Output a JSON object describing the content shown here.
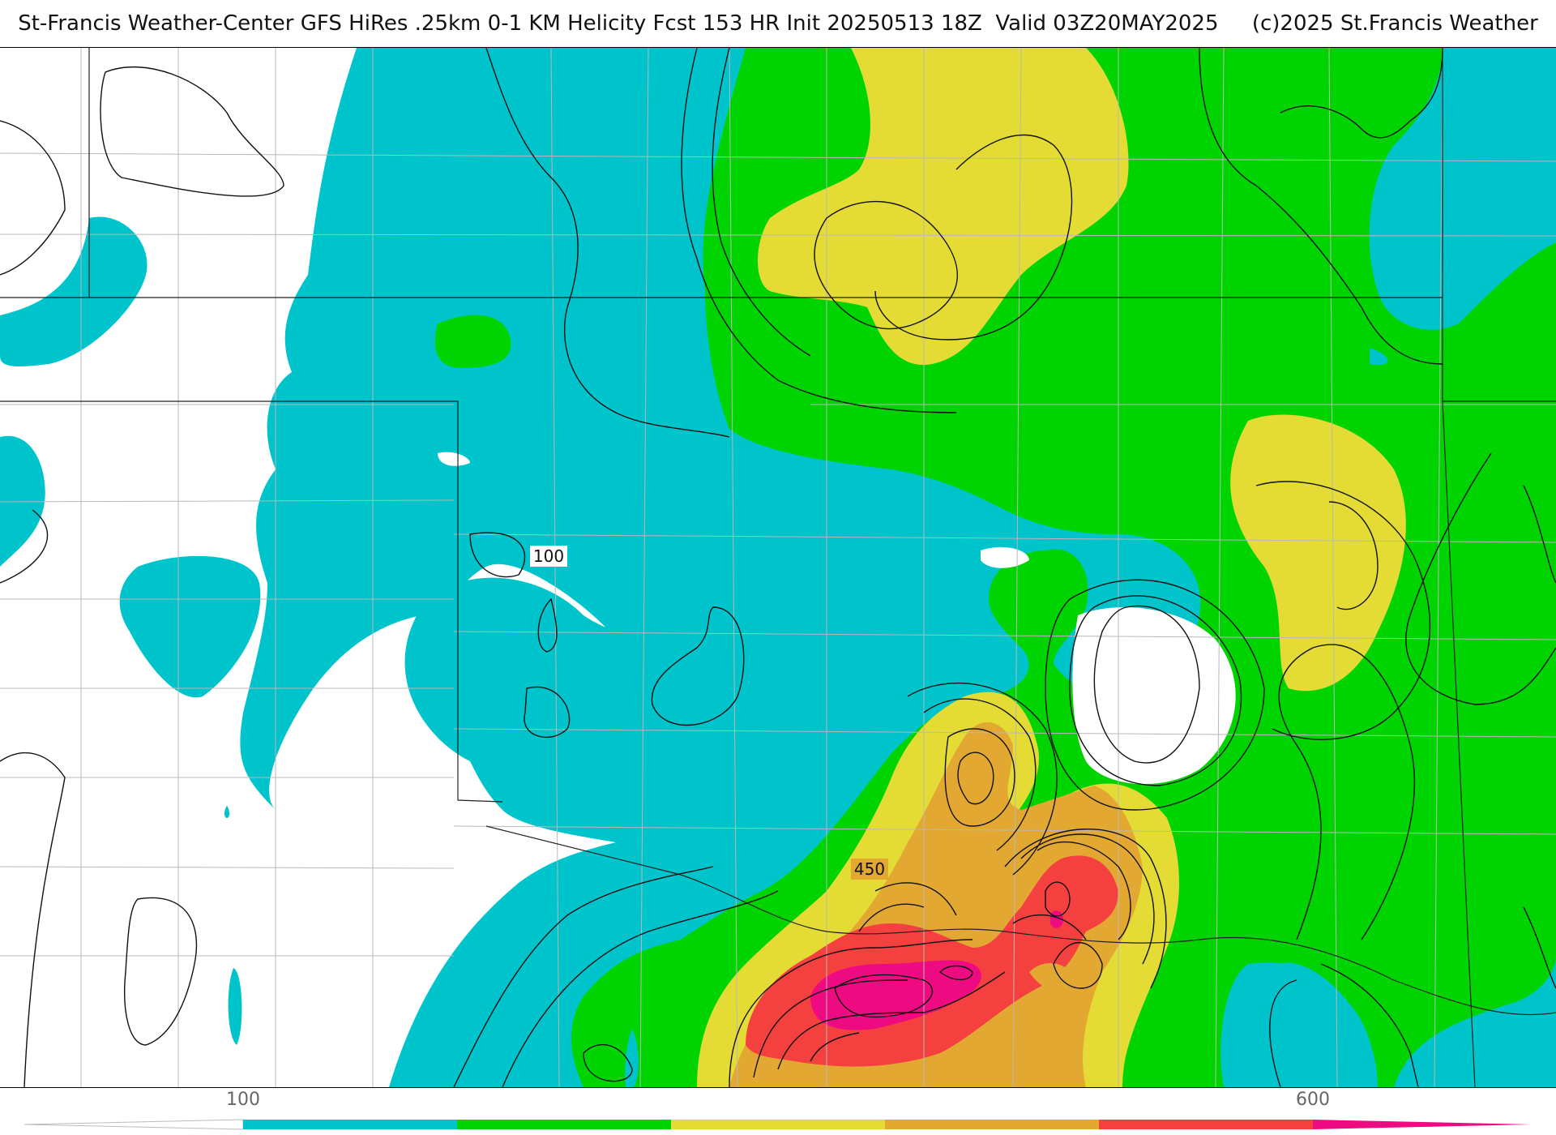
{
  "title": "St-Francis Weather-Center GFS HiRes .25km 0-1 KM Helicity Fcst 153 HR Init 20250513 18Z  Valid 03Z20MAY2025     (c)2025 St.Francis Weather",
  "contour_labels": [
    "100",
    "450"
  ],
  "legend": {
    "tick_labels": [
      "100",
      "600"
    ],
    "bins": [
      {
        "color": "#ffffff"
      },
      {
        "color": "#00c4cc"
      },
      {
        "color": "#00d400"
      },
      {
        "color": "#e4dc34"
      },
      {
        "color": "#e3a832"
      },
      {
        "color": "#f54040"
      },
      {
        "color": "#ee0a80"
      }
    ]
  },
  "colors": {
    "cyan": "#00c4cc",
    "green": "#00d400",
    "yellow": "#e4dc34",
    "orange": "#e3a832",
    "red": "#f54040",
    "magenta": "#ee0a80",
    "contour": "#111111",
    "borders": "#b8b8b8"
  }
}
